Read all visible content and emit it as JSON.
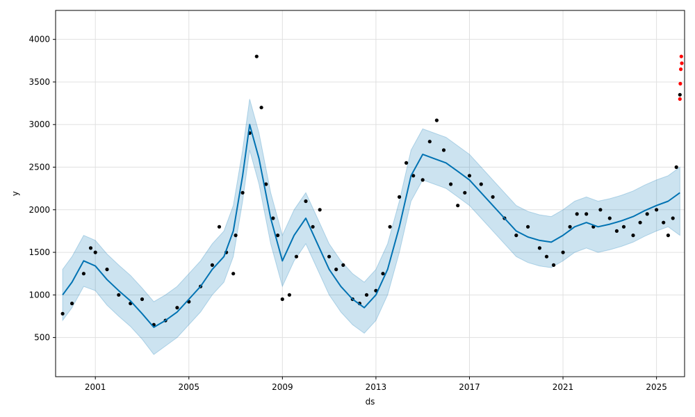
{
  "chart_data": {
    "type": "line",
    "xlabel": "ds",
    "ylabel": "y",
    "xlim": [
      1999.3,
      2026.2
    ],
    "ylim": [
      40,
      4340
    ],
    "grid": true,
    "x_ticks": [
      2001,
      2005,
      2009,
      2013,
      2017,
      2021,
      2025
    ],
    "x_tick_labels": [
      "2001",
      "2005",
      "2009",
      "2013",
      "2017",
      "2021",
      "2025"
    ],
    "y_ticks": [
      500,
      1000,
      1500,
      2000,
      2500,
      3000,
      3500,
      4000
    ],
    "y_tick_labels": [
      "500",
      "1000",
      "1500",
      "2000",
      "2500",
      "3000",
      "3500",
      "4000"
    ],
    "colors": {
      "observed": "#000000",
      "outliers": "#ff0000",
      "forecast": "#0072b2",
      "interval": "#0072b2"
    },
    "series": [
      {
        "kind": "forecast",
        "x": [
          1999.6,
          2000.0,
          2000.5,
          2001.0,
          2001.5,
          2002.0,
          2002.5,
          2003.0,
          2003.5,
          2004.0,
          2004.5,
          2005.0,
          2005.5,
          2006.0,
          2006.5,
          2006.9,
          2007.3,
          2007.6,
          2008.0,
          2008.5,
          2009.0,
          2009.5,
          2010.0,
          2010.5,
          2011.0,
          2011.5,
          2012.0,
          2012.5,
          2013.0,
          2013.5,
          2014.0,
          2014.5,
          2015.0,
          2015.5,
          2016.0,
          2016.5,
          2017.0,
          2017.5,
          2018.0,
          2018.5,
          2019.0,
          2019.5,
          2020.0,
          2020.5,
          2021.0,
          2021.5,
          2022.0,
          2022.5,
          2023.0,
          2023.5,
          2024.0,
          2024.5,
          2025.0,
          2025.5,
          2026.0
        ],
        "yhat": [
          1000,
          1150,
          1400,
          1340,
          1180,
          1050,
          930,
          780,
          620,
          700,
          800,
          950,
          1100,
          1300,
          1450,
          1750,
          2400,
          3000,
          2600,
          1900,
          1400,
          1700,
          1900,
          1600,
          1300,
          1100,
          950,
          850,
          1000,
          1300,
          1800,
          2400,
          2650,
          2600,
          2550,
          2450,
          2350,
          2200,
          2050,
          1900,
          1750,
          1680,
          1640,
          1620,
          1700,
          1800,
          1850,
          1800,
          1830,
          1870,
          1920,
          1990,
          2050,
          2100,
          2200
        ],
        "yhat_lower": [
          700,
          850,
          1100,
          1050,
          880,
          750,
          630,
          480,
          300,
          400,
          500,
          650,
          800,
          1000,
          1150,
          1450,
          2100,
          2700,
          2300,
          1600,
          1100,
          1400,
          1600,
          1300,
          1000,
          800,
          650,
          550,
          700,
          1000,
          1500,
          2100,
          2350,
          2300,
          2250,
          2150,
          2050,
          1900,
          1750,
          1600,
          1450,
          1380,
          1340,
          1320,
          1400,
          1500,
          1550,
          1500,
          1530,
          1570,
          1620,
          1690,
          1750,
          1800,
          1700
        ],
        "yhat_upper": [
          1300,
          1450,
          1700,
          1640,
          1480,
          1350,
          1230,
          1080,
          920,
          1000,
          1100,
          1250,
          1400,
          1600,
          1750,
          2050,
          2700,
          3300,
          2900,
          2200,
          1700,
          2000,
          2200,
          1900,
          1600,
          1400,
          1250,
          1150,
          1300,
          1600,
          2100,
          2700,
          2950,
          2900,
          2850,
          2750,
          2650,
          2500,
          2350,
          2200,
          2050,
          1980,
          1940,
          1920,
          2000,
          2100,
          2150,
          2100,
          2130,
          2170,
          2220,
          2290,
          2350,
          2400,
          2500
        ]
      },
      {
        "kind": "observed",
        "x": [
          1999.6,
          2000.0,
          2000.5,
          2000.8,
          2001.0,
          2001.5,
          2002.0,
          2002.5,
          2003.0,
          2003.5,
          2004.0,
          2004.5,
          2005.0,
          2005.5,
          2006.0,
          2006.3,
          2006.6,
          2006.9,
          2007.0,
          2007.3,
          2007.6,
          2007.9,
          2008.1,
          2008.3,
          2008.6,
          2008.8,
          2009.0,
          2009.3,
          2009.6,
          2010.0,
          2010.3,
          2010.6,
          2011.0,
          2011.3,
          2011.6,
          2012.0,
          2012.3,
          2012.6,
          2013.0,
          2013.3,
          2013.6,
          2014.0,
          2014.3,
          2014.6,
          2015.0,
          2015.3,
          2015.6,
          2015.9,
          2016.2,
          2016.5,
          2016.8,
          2017.0,
          2017.5,
          2018.0,
          2018.5,
          2019.0,
          2019.5,
          2020.0,
          2020.3,
          2020.6,
          2021.0,
          2021.3,
          2021.6,
          2022.0,
          2022.3,
          2022.6,
          2023.0,
          2023.3,
          2023.6,
          2024.0,
          2024.3,
          2024.6,
          2025.0,
          2025.3,
          2025.5,
          2025.7,
          2025.85,
          2026.0
        ],
        "y": [
          780,
          900,
          1250,
          1550,
          1500,
          1300,
          1000,
          900,
          950,
          650,
          700,
          850,
          920,
          1100,
          1350,
          1800,
          1500,
          1250,
          1700,
          2200,
          2900,
          3800,
          3200,
          2300,
          1900,
          1700,
          950,
          1000,
          1450,
          2100,
          1800,
          2000,
          1450,
          1300,
          1350,
          950,
          900,
          1000,
          1050,
          1250,
          1800,
          2150,
          2550,
          2400,
          2350,
          2800,
          3050,
          2700,
          2300,
          2050,
          2200,
          2400,
          2300,
          2150,
          1900,
          1700,
          1800,
          1550,
          1450,
          1350,
          1500,
          1800,
          1950,
          1950,
          1800,
          2000,
          1900,
          1750,
          1800,
          1700,
          1850,
          1950,
          2000,
          1850,
          1700,
          1900,
          2500,
          3350
        ]
      },
      {
        "kind": "outliers",
        "x": [
          2026.0,
          2026.02,
          2026.04,
          2026.06,
          2026.08
        ],
        "y": [
          3300,
          3480,
          3650,
          3800,
          3720
        ]
      }
    ]
  }
}
